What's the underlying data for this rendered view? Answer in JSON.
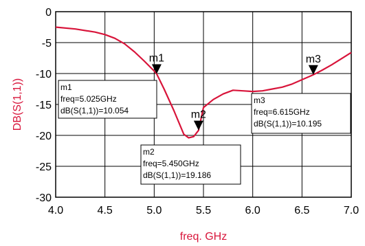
{
  "chart_data": {
    "type": "line",
    "title": "",
    "xlabel": "freq. GHz",
    "ylabel": "DB(S(1,1))",
    "xlim": [
      4.0,
      7.0
    ],
    "ylim": [
      -30,
      0
    ],
    "grid": true,
    "x_ticks": [
      "4.0",
      "4.5",
      "5.0",
      "5.5",
      "6.0",
      "6.5",
      "7.0"
    ],
    "y_ticks": [
      "0",
      "-5",
      "-10",
      "-15",
      "-20",
      "-25",
      "-30"
    ],
    "series": [
      {
        "name": "",
        "color": "#d8143a",
        "x": [
          4.0,
          4.2,
          4.4,
          4.5,
          4.6,
          4.7,
          4.8,
          4.9,
          5.0,
          5.025,
          5.1,
          5.2,
          5.3,
          5.35,
          5.4,
          5.45,
          5.5,
          5.6,
          5.7,
          5.8,
          5.9,
          6.0,
          6.1,
          6.2,
          6.3,
          6.4,
          6.5,
          6.6,
          6.615,
          6.7,
          6.8,
          6.9,
          7.0
        ],
        "y": [
          -2.5,
          -2.8,
          -3.3,
          -3.7,
          -4.3,
          -5.2,
          -6.5,
          -8.0,
          -9.6,
          -10.05,
          -12.5,
          -16.0,
          -19.8,
          -20.4,
          -20.2,
          -19.2,
          -15.5,
          -14.2,
          -13.3,
          -12.7,
          -12.8,
          -12.9,
          -12.8,
          -12.5,
          -12.2,
          -11.7,
          -11.0,
          -10.3,
          -10.2,
          -9.5,
          -8.6,
          -7.6,
          -6.6
        ]
      }
    ],
    "markers": [
      {
        "name": "m1",
        "x": 5.025,
        "y": -10.054,
        "label_lines": [
          "m1",
          "freq=5.025GHz",
          "dB(S(1,1))=10.054"
        ]
      },
      {
        "name": "m2",
        "x": 5.45,
        "y": -19.186,
        "label_lines": [
          "m2",
          "freq=5.450GHz",
          "dB(S(1,1))=19.186"
        ]
      },
      {
        "name": "m3",
        "x": 6.615,
        "y": -10.195,
        "label_lines": [
          "m3",
          "freq=6.615GHz",
          "dB(S(1,1))=10.195"
        ]
      }
    ]
  }
}
